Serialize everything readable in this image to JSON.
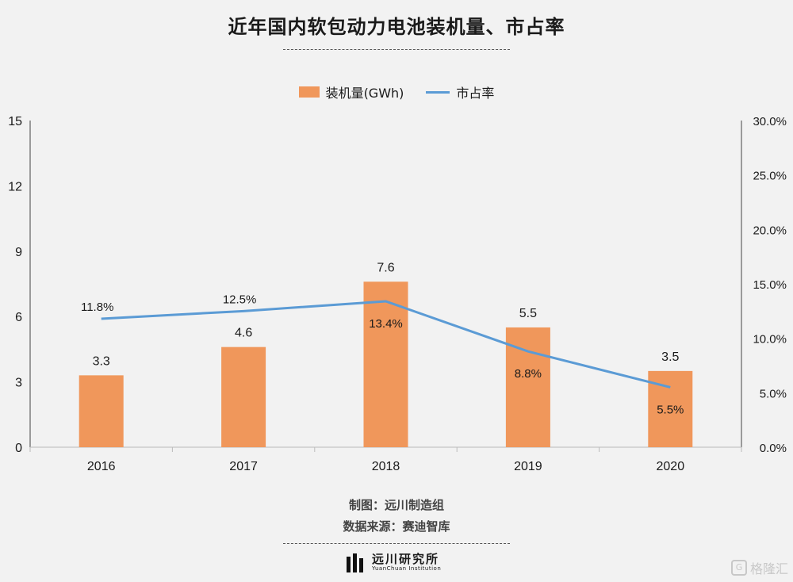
{
  "title": "近年国内软包动力电池装机量、市占率",
  "legend": {
    "bar_label": "装机量(GWh)",
    "line_label": "市占率"
  },
  "footer": {
    "maker": "制图：远川制造组",
    "source": "数据来源：赛迪智库"
  },
  "logo": {
    "name": "远川研究所",
    "subtitle": "YuanChuan Institution"
  },
  "watermark": "格隆汇",
  "colors": {
    "bar": "#f0975b",
    "line": "#5b9bd5",
    "background": "#f2f2f2"
  },
  "chart_data": {
    "type": "bar",
    "categories": [
      "2016",
      "2017",
      "2018",
      "2019",
      "2020"
    ],
    "series": [
      {
        "name": "装机量(GWh)",
        "type": "bar",
        "axis": "left",
        "values": [
          3.3,
          4.6,
          7.6,
          5.5,
          3.5
        ],
        "labels": [
          "3.3",
          "4.6",
          "7.6",
          "5.5",
          "3.5"
        ]
      },
      {
        "name": "市占率",
        "type": "line",
        "axis": "right",
        "values": [
          11.8,
          12.5,
          13.4,
          8.8,
          5.5
        ],
        "labels": [
          "11.8%",
          "12.5%",
          "13.4%",
          "8.8%",
          "5.5%"
        ]
      }
    ],
    "y_left": {
      "ylim": [
        0,
        15
      ],
      "ticks": [
        "0",
        "3",
        "6",
        "9",
        "12",
        "15"
      ]
    },
    "y_right": {
      "ylim": [
        0,
        30
      ],
      "ticks": [
        "0.0%",
        "5.0%",
        "10.0%",
        "15.0%",
        "20.0%",
        "25.0%",
        "30.0%"
      ]
    },
    "grid": false,
    "legend_position": "top-center"
  }
}
